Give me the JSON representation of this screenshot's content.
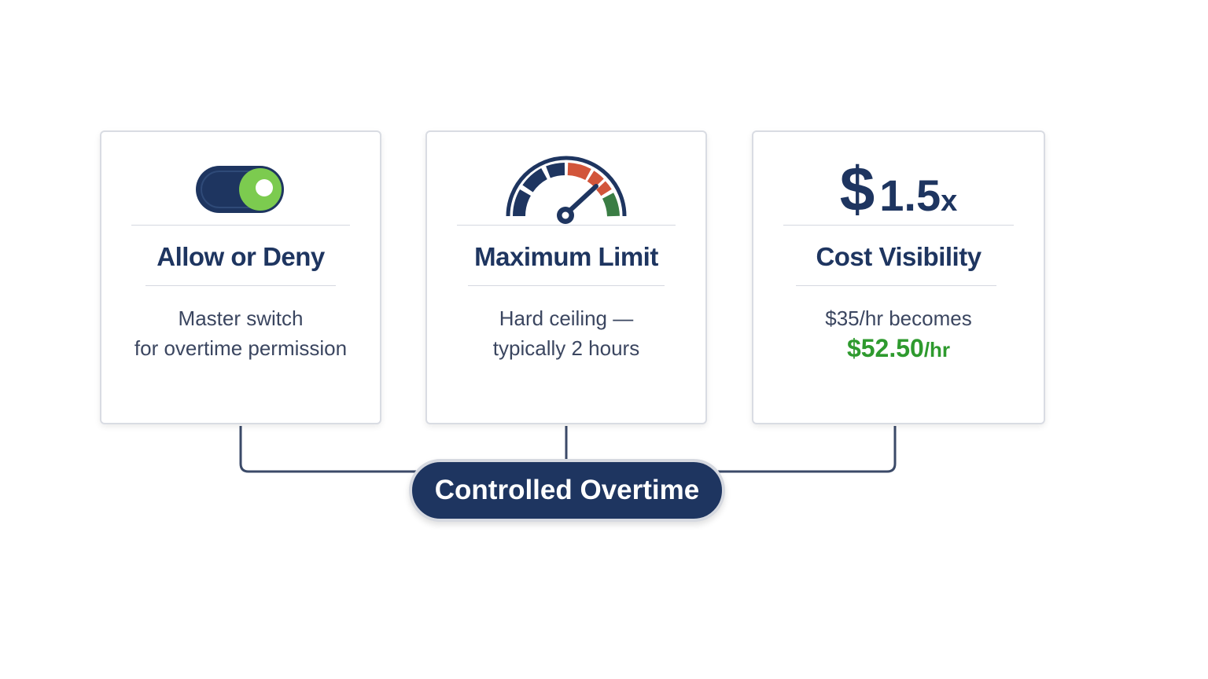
{
  "cards": [
    {
      "title": "Allow or Deny",
      "desc_line1": "Master switch",
      "desc_line2": "for overtime permission",
      "icon": "toggle-switch-on"
    },
    {
      "title": "Maximum Limit",
      "desc_line1": "Hard ceiling —",
      "desc_line2": "typically 2 hours",
      "icon": "speedometer-gauge"
    },
    {
      "title": "Cost Visibility",
      "desc_line1": "$35/hr becomes",
      "amount": "$52.50",
      "unit": "/hr",
      "icon": "dollar-sign",
      "currency": "$",
      "multiplier": "1.5",
      "multiplier_suffix": "x"
    }
  ],
  "hub": {
    "label": "Controlled Overtime"
  },
  "colors": {
    "navy": "#1e3560",
    "green": "#2e9a2e",
    "toggle_green": "#7ccb4f",
    "red": "#d2553a",
    "gauge_green": "#3a7d44"
  }
}
